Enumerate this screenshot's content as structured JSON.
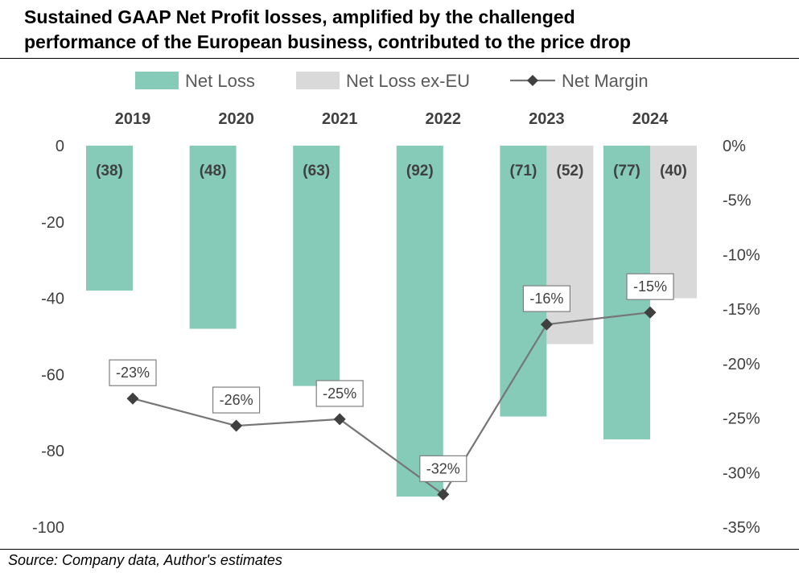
{
  "title_line1": "Sustained GAAP Net Profit losses, amplified by the challenged",
  "title_line2": "performance of the European business, contributed to the price drop",
  "source": "Source: Company data, Author's estimates",
  "chart_data": {
    "type": "bar",
    "categories": [
      "2019",
      "2020",
      "2021",
      "2022",
      "2023",
      "2024"
    ],
    "series": [
      {
        "name": "Net Loss",
        "kind": "bar",
        "axis": "left",
        "color": "#85CBB8",
        "values": [
          -38,
          -48,
          -63,
          -92,
          -71,
          -77
        ],
        "labels": [
          "(38)",
          "(48)",
          "(63)",
          "(92)",
          "(71)",
          "(77)"
        ]
      },
      {
        "name": "Net Loss ex-EU",
        "kind": "bar",
        "axis": "left",
        "color": "#D9D9D9",
        "values": [
          null,
          null,
          null,
          null,
          -52,
          -40
        ],
        "labels": [
          "",
          "",
          "",
          "",
          "(52)",
          "(40)"
        ]
      },
      {
        "name": "Net Margin",
        "kind": "line",
        "axis": "right",
        "color": "#767676",
        "marker_color": "#404040",
        "values": [
          -23.2,
          -25.7,
          -25.1,
          -32.0,
          -16.4,
          -15.3
        ],
        "labels": [
          "-23%",
          "-26%",
          "-25%",
          "-32%",
          "-16%",
          "-15%"
        ]
      }
    ],
    "left_axis": {
      "min": -100,
      "max": 0,
      "ticks": [
        0,
        -20,
        -40,
        -60,
        -80,
        -100
      ],
      "tick_labels": [
        "0",
        "-20",
        "-40",
        "-60",
        "-80",
        "-100"
      ]
    },
    "right_axis": {
      "min": -35,
      "max": 0,
      "ticks": [
        0,
        -5,
        -10,
        -15,
        -20,
        -25,
        -30,
        -35
      ],
      "tick_labels": [
        "0%",
        "-5%",
        "-10%",
        "-15%",
        "-20%",
        "-25%",
        "-30%",
        "-35%"
      ]
    },
    "legend": "top",
    "grid": false
  }
}
